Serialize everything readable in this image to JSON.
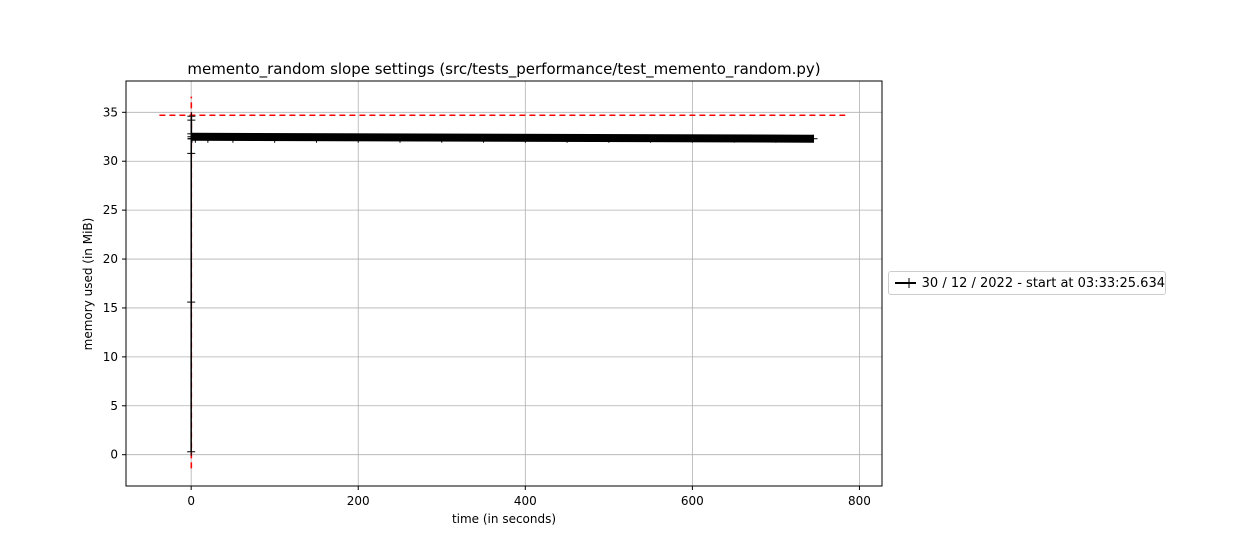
{
  "chart_data": {
    "type": "line",
    "title": "memento_random slope settings (src/tests_performance/test_memento_random.py)",
    "xlabel": "time (in seconds)",
    "ylabel": "memory used (in MiB)",
    "xlim": [
      -78,
      827
    ],
    "ylim": [
      -3.2,
      38.2
    ],
    "xticks": [
      0,
      200,
      400,
      600,
      800
    ],
    "yticks": [
      0,
      5,
      10,
      15,
      20,
      25,
      30,
      35
    ],
    "grid": true,
    "legend_position": "center-right outside",
    "series": [
      {
        "name": "30 / 12 / 2022 - start at 03:33:25.634",
        "color": "#000000",
        "marker": "+",
        "x": [
          0.0,
          0.05,
          0.1,
          0.15,
          0.2,
          0.25,
          0.3,
          0.4,
          0.5,
          1.0,
          5,
          20,
          50,
          100,
          150,
          200,
          250,
          300,
          350,
          400,
          450,
          500,
          550,
          600,
          650,
          700,
          745
        ],
        "y": [
          0.3,
          15.6,
          30.8,
          32.8,
          34.2,
          34.6,
          32.5,
          32.3,
          32.3,
          32.3,
          32.3,
          32.3,
          32.3,
          32.3,
          32.3,
          32.3,
          32.3,
          32.3,
          32.3,
          32.3,
          32.3,
          32.3,
          32.3,
          32.3,
          32.3,
          32.3,
          32.3
        ]
      }
    ],
    "reference_lines": {
      "color": "#ff0000",
      "style": "dashed",
      "horizontal_y": 34.7,
      "horizontal_x_range": [
        -38,
        783
      ],
      "vertical_x": 0.2,
      "vertical_y_range": [
        -1.4,
        36.6
      ]
    }
  }
}
